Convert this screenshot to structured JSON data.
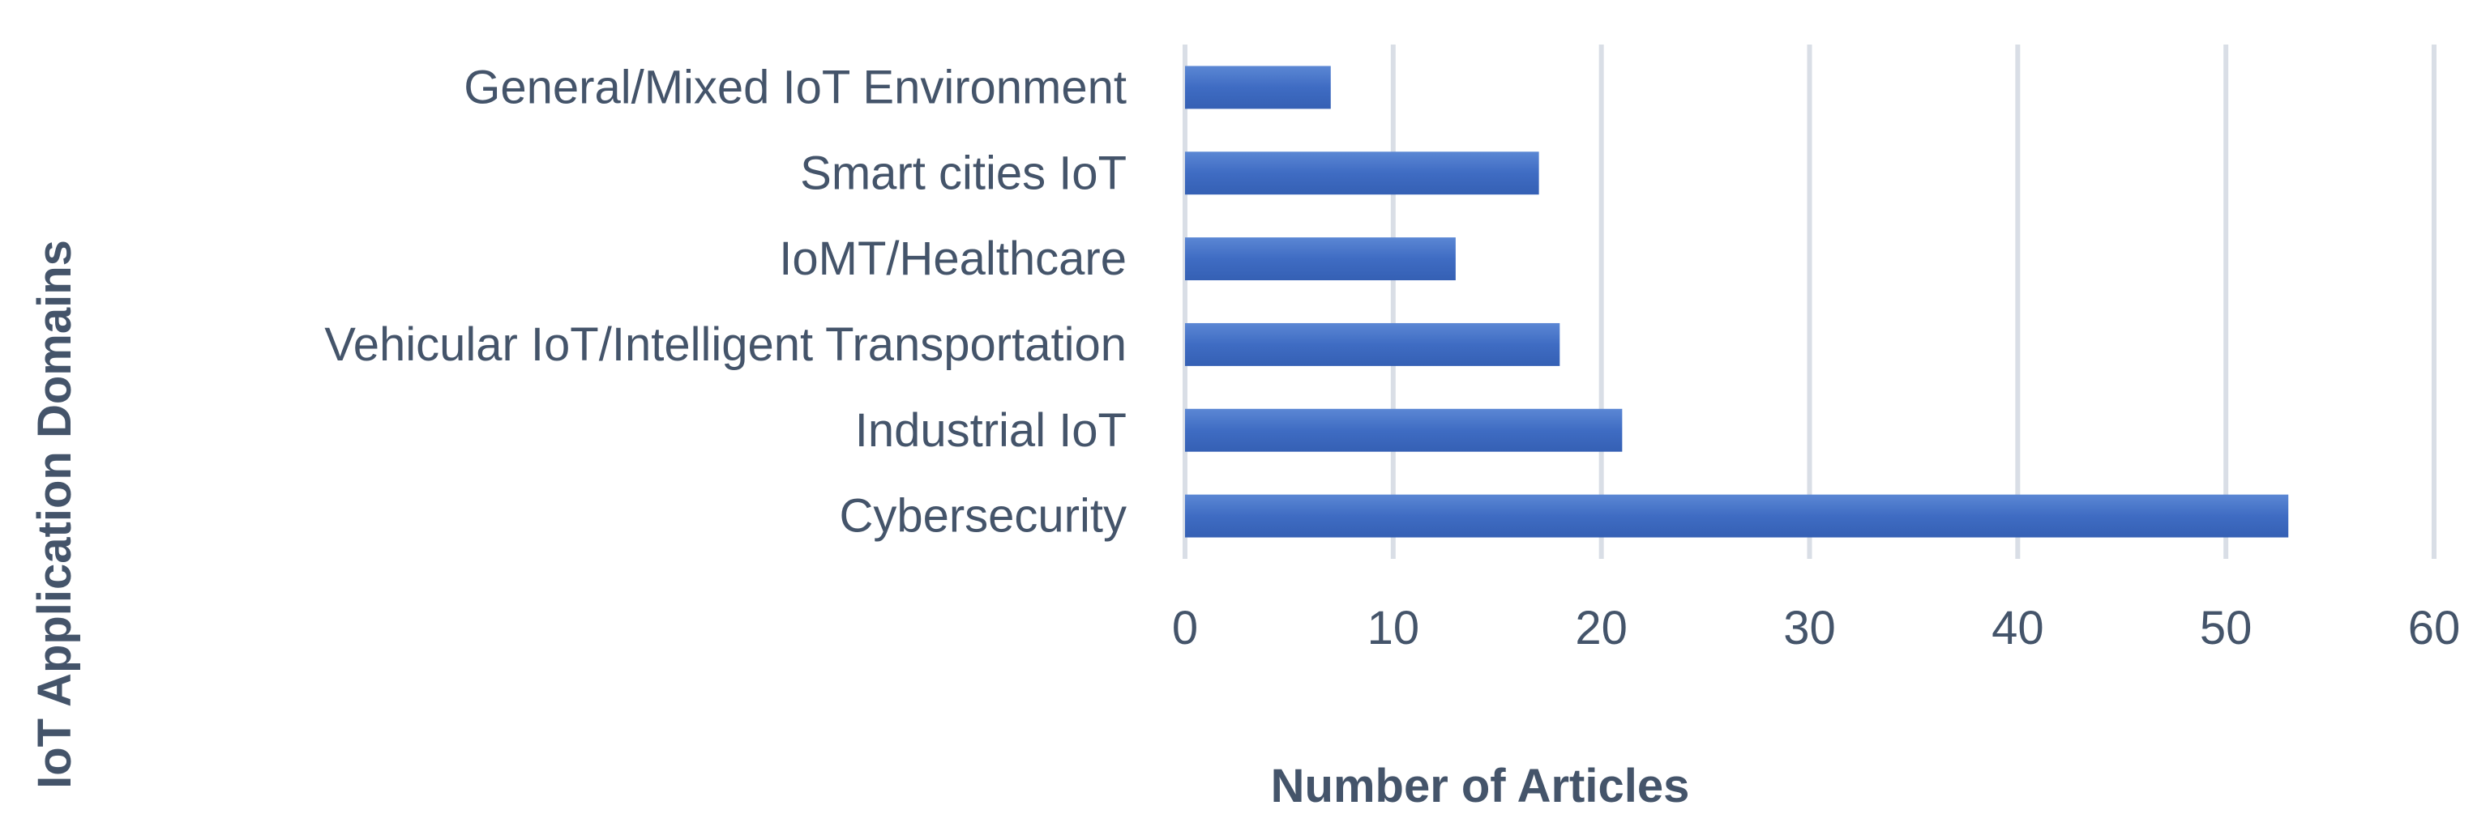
{
  "chart_data": {
    "type": "bar",
    "orientation": "horizontal",
    "categories": [
      "General/Mixed IoT Environment",
      "Smart cities IoT",
      "IoMT/Healthcare",
      "Vehicular IoT/Intelligent Transportation",
      "Industrial IoT",
      "Cybersecurity"
    ],
    "values": [
      7,
      17,
      13,
      18,
      21,
      53
    ],
    "xlabel": "Number of Articles",
    "ylabel": "IoT Application Domains",
    "xlim": [
      0,
      60
    ],
    "xticks": [
      "0",
      "10",
      "20",
      "30",
      "40",
      "50",
      "60"
    ],
    "grid": true,
    "legend": "none",
    "bar_color": "#4472c4"
  }
}
